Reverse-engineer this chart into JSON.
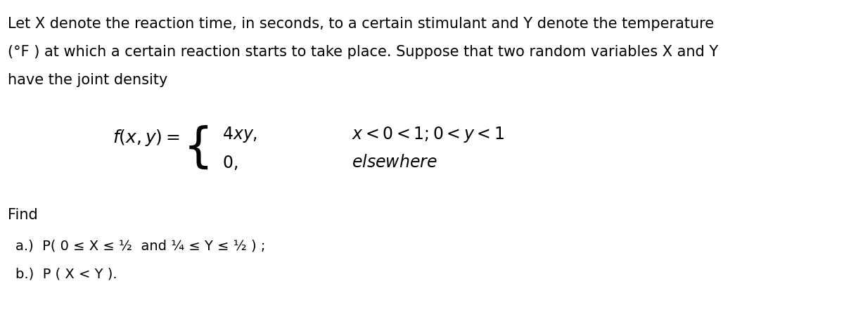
{
  "bg_color": "#ffffff",
  "fig_width": 12.0,
  "fig_height": 4.71,
  "dpi": 100,
  "paragraph1": "Let X denote the reaction time, in seconds, to a certain stimulant and Y denote the temperature",
  "paragraph2": "(°F ) at which a certain reaction starts to take place. Suppose that two random variables X and Y",
  "paragraph3": "have the joint density",
  "formula_lhs": "$f(x,y) = $",
  "formula_case1": "$4xy,$",
  "formula_case1_cond": "$x < 0 < 1; 0 < y < 1$",
  "formula_case2": "$0,$",
  "formula_case2_cond": "$elsewhere$",
  "find_label": "Find",
  "part_a": "a.)  P( 0 ≤ X ≤ ½  and ¼ ≤ Y ≤ ½ ) ;",
  "part_b": "b.)  P ( X < Y ).",
  "font_size_body": 15,
  "font_size_formula": 16,
  "font_size_find": 15,
  "font_size_parts": 14,
  "text_color": "#000000",
  "font_family": "DejaVu Sans"
}
